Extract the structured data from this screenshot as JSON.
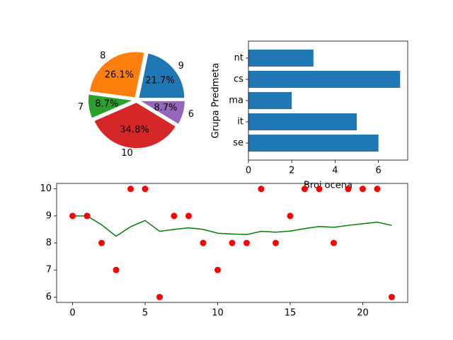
{
  "chart_data": [
    {
      "type": "pie",
      "labels": [
        "9",
        "8",
        "7",
        "10",
        "6"
      ],
      "values": [
        5,
        6,
        2,
        8,
        2
      ],
      "pct_labels": [
        "21.7%",
        "26.1%",
        "8.7%",
        "34.8%",
        "8.7%"
      ],
      "colors": [
        "#1f77b4",
        "#ff7f0e",
        "#2ca02c",
        "#d62728",
        "#9467bd"
      ],
      "exploded": true
    },
    {
      "type": "bar",
      "orientation": "horizontal",
      "categories": [
        "se",
        "it",
        "ma",
        "cs",
        "nt"
      ],
      "values": [
        6,
        5,
        2,
        7,
        3
      ],
      "xlabel": "Broj ocena",
      "ylabel": "Grupa Predmeta",
      "xlim": [
        0,
        7.35
      ],
      "xticks": [
        0,
        2,
        4,
        6
      ],
      "color": "#1f77b4"
    },
    {
      "type": "scatter",
      "x": [
        0,
        1,
        2,
        3,
        4,
        5,
        6,
        7,
        8,
        9,
        10,
        11,
        12,
        13,
        14,
        15,
        16,
        17,
        18,
        19,
        20,
        21,
        22
      ],
      "series": [
        {
          "kind": "points",
          "color": "#ff0000",
          "values": [
            9,
            9,
            8,
            7,
            10,
            10,
            6,
            9,
            9,
            8,
            7,
            8,
            8,
            10,
            8,
            9,
            10,
            10,
            8,
            10,
            10,
            10,
            6
          ]
        },
        {
          "kind": "line",
          "color": "#008000",
          "values": [
            9.0,
            9.0,
            8.67,
            8.25,
            8.6,
            8.83,
            8.43,
            8.5,
            8.56,
            8.5,
            8.36,
            8.33,
            8.31,
            8.43,
            8.4,
            8.44,
            8.53,
            8.61,
            8.58,
            8.65,
            8.71,
            8.77,
            8.65
          ]
        }
      ],
      "xlim": [
        -1.1,
        23.1
      ],
      "ylim": [
        5.8,
        10.2
      ],
      "xticks": [
        0,
        5,
        10,
        15,
        20
      ],
      "yticks": [
        6,
        7,
        8,
        9,
        10
      ]
    }
  ]
}
